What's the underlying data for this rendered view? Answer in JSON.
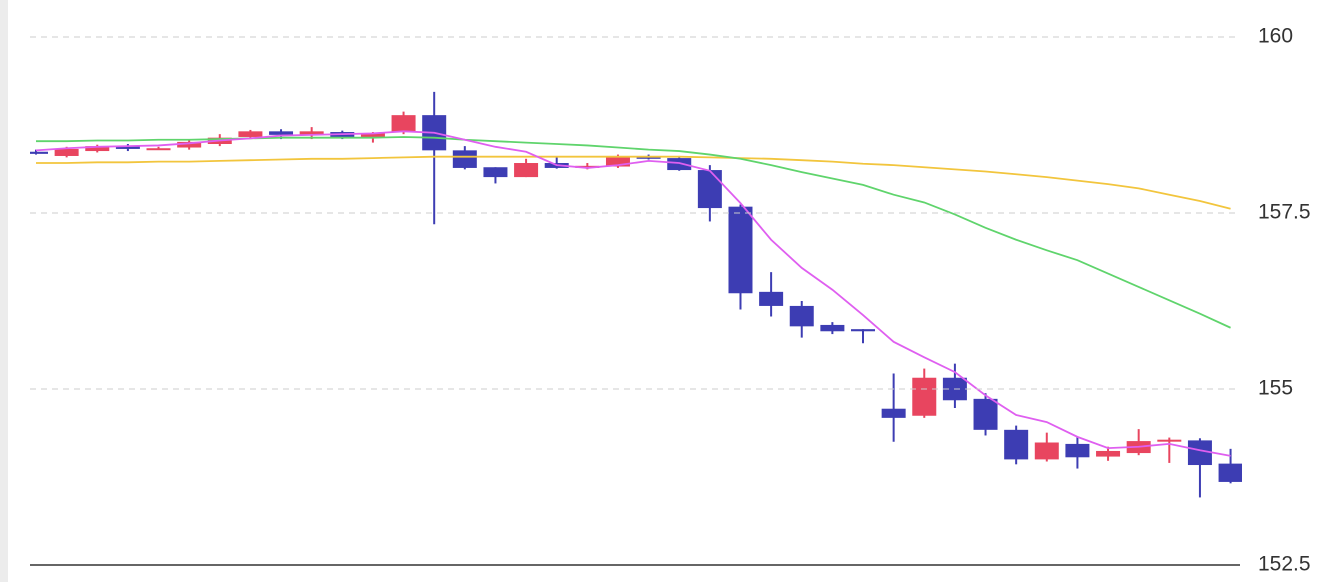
{
  "chart_data": {
    "type": "candlestick",
    "open": [
      158.37,
      158.31,
      158.38,
      158.45,
      158.41,
      158.43,
      158.48,
      158.58,
      158.66,
      158.61,
      158.65,
      158.58,
      158.65,
      158.89,
      158.39,
      158.15,
      158.01,
      158.21,
      158.14,
      158.16,
      158.3,
      158.28,
      158.11,
      157.59,
      156.38,
      156.18,
      155.91,
      155.85,
      154.72,
      154.62,
      155.16,
      154.86,
      154.42,
      154.0,
      154.22,
      154.04,
      154.09,
      154.26,
      154.27,
      153.94
    ],
    "high": [
      158.4,
      158.44,
      158.47,
      158.48,
      158.44,
      158.55,
      158.62,
      158.68,
      158.69,
      158.72,
      158.67,
      158.65,
      158.94,
      159.22,
      158.45,
      158.15,
      158.27,
      158.29,
      158.21,
      158.33,
      158.33,
      158.31,
      158.18,
      157.62,
      156.66,
      156.25,
      155.95,
      155.85,
      155.22,
      155.29,
      155.36,
      154.94,
      154.48,
      154.38,
      154.32,
      154.18,
      154.43,
      154.31,
      154.3,
      154.15
    ],
    "low": [
      158.33,
      158.29,
      158.36,
      158.38,
      158.4,
      158.4,
      158.45,
      158.55,
      158.55,
      158.55,
      158.55,
      158.5,
      158.62,
      157.34,
      158.12,
      157.92,
      158.01,
      158.13,
      158.12,
      158.14,
      158.26,
      158.1,
      157.38,
      156.13,
      156.03,
      155.73,
      155.78,
      155.65,
      154.25,
      154.59,
      154.73,
      154.34,
      153.93,
      153.97,
      153.87,
      153.98,
      154.06,
      153.95,
      153.46,
      153.66
    ],
    "close": [
      158.34,
      158.41,
      158.45,
      158.41,
      158.42,
      158.51,
      158.57,
      158.66,
      158.61,
      158.66,
      158.58,
      158.63,
      158.89,
      158.39,
      158.14,
      158.01,
      158.21,
      158.14,
      158.17,
      158.3,
      158.27,
      158.11,
      157.57,
      156.36,
      156.18,
      155.89,
      155.82,
      155.82,
      154.59,
      155.16,
      154.84,
      154.42,
      154.0,
      154.24,
      154.03,
      154.12,
      154.26,
      154.28,
      153.92,
      153.68
    ],
    "up_color": "#e8455f",
    "down_color": "#3d3db3",
    "lines": [
      {
        "color": "#f2c53d",
        "values": [
          158.21,
          158.21,
          158.22,
          158.22,
          158.23,
          158.23,
          158.24,
          158.25,
          158.26,
          158.27,
          158.27,
          158.28,
          158.29,
          158.3,
          158.3,
          158.3,
          158.3,
          158.3,
          158.3,
          158.3,
          158.3,
          158.3,
          158.29,
          158.28,
          158.27,
          158.25,
          158.23,
          158.2,
          158.18,
          158.15,
          158.12,
          158.09,
          158.05,
          158.01,
          157.96,
          157.91,
          157.85,
          157.76,
          157.67,
          157.56
        ]
      },
      {
        "color": "#5fd46c",
        "values": [
          158.52,
          158.52,
          158.53,
          158.53,
          158.54,
          158.54,
          158.55,
          158.56,
          158.57,
          158.57,
          158.57,
          158.57,
          158.58,
          158.57,
          158.54,
          158.52,
          158.5,
          158.48,
          158.46,
          158.43,
          158.4,
          158.38,
          158.33,
          158.27,
          158.18,
          158.08,
          157.99,
          157.9,
          157.76,
          157.65,
          157.48,
          157.29,
          157.12,
          156.97,
          156.83,
          156.64,
          156.45,
          156.26,
          156.07,
          155.87
        ]
      },
      {
        "color": "#df5ff0",
        "values": [
          158.39,
          158.42,
          158.44,
          158.45,
          158.46,
          158.49,
          158.53,
          158.56,
          158.6,
          158.61,
          158.62,
          158.63,
          158.66,
          158.64,
          158.54,
          158.44,
          158.37,
          158.18,
          158.14,
          158.18,
          158.24,
          158.21,
          158.1,
          157.64,
          157.12,
          156.72,
          156.41,
          156.05,
          155.67,
          155.45,
          155.24,
          154.91,
          154.63,
          154.53,
          154.32,
          154.16,
          154.18,
          154.22,
          154.13,
          154.05
        ]
      }
    ],
    "ylim": [
      152.5,
      160.5
    ],
    "yticks": [
      152.5,
      155,
      157.5,
      160
    ],
    "grid": true
  }
}
